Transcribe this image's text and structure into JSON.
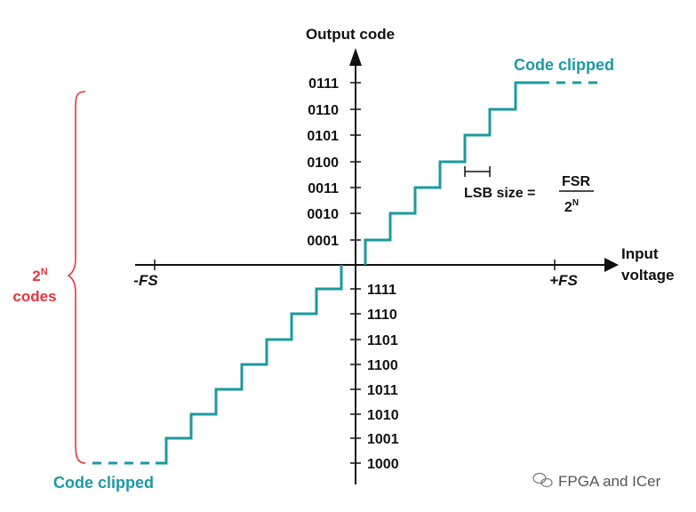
{
  "axes": {
    "y_title": "Output code",
    "x_title_line1": "Input",
    "x_title_line2": "voltage",
    "neg_fs": "-FS",
    "pos_fs": "+FS"
  },
  "codes_positive": [
    "0111",
    "0110",
    "0101",
    "0100",
    "0011",
    "0010",
    "0001"
  ],
  "codes_negative": [
    "1111",
    "1110",
    "1101",
    "1100",
    "1011",
    "1010",
    "1001",
    "1000"
  ],
  "clipped_top": "Code clipped",
  "clipped_bottom": "Code clipped",
  "codes_brace": {
    "base": "2",
    "exponent": "N",
    "word": "codes"
  },
  "lsb": {
    "label": "LSB size =",
    "numerator": "FSR",
    "denominator_base": "2",
    "denominator_exp": "N"
  },
  "watermark": "FPGA and ICer",
  "colors": {
    "staircase": "#1b9aa0",
    "brace": "#e8343b",
    "axis": "#111111"
  }
}
